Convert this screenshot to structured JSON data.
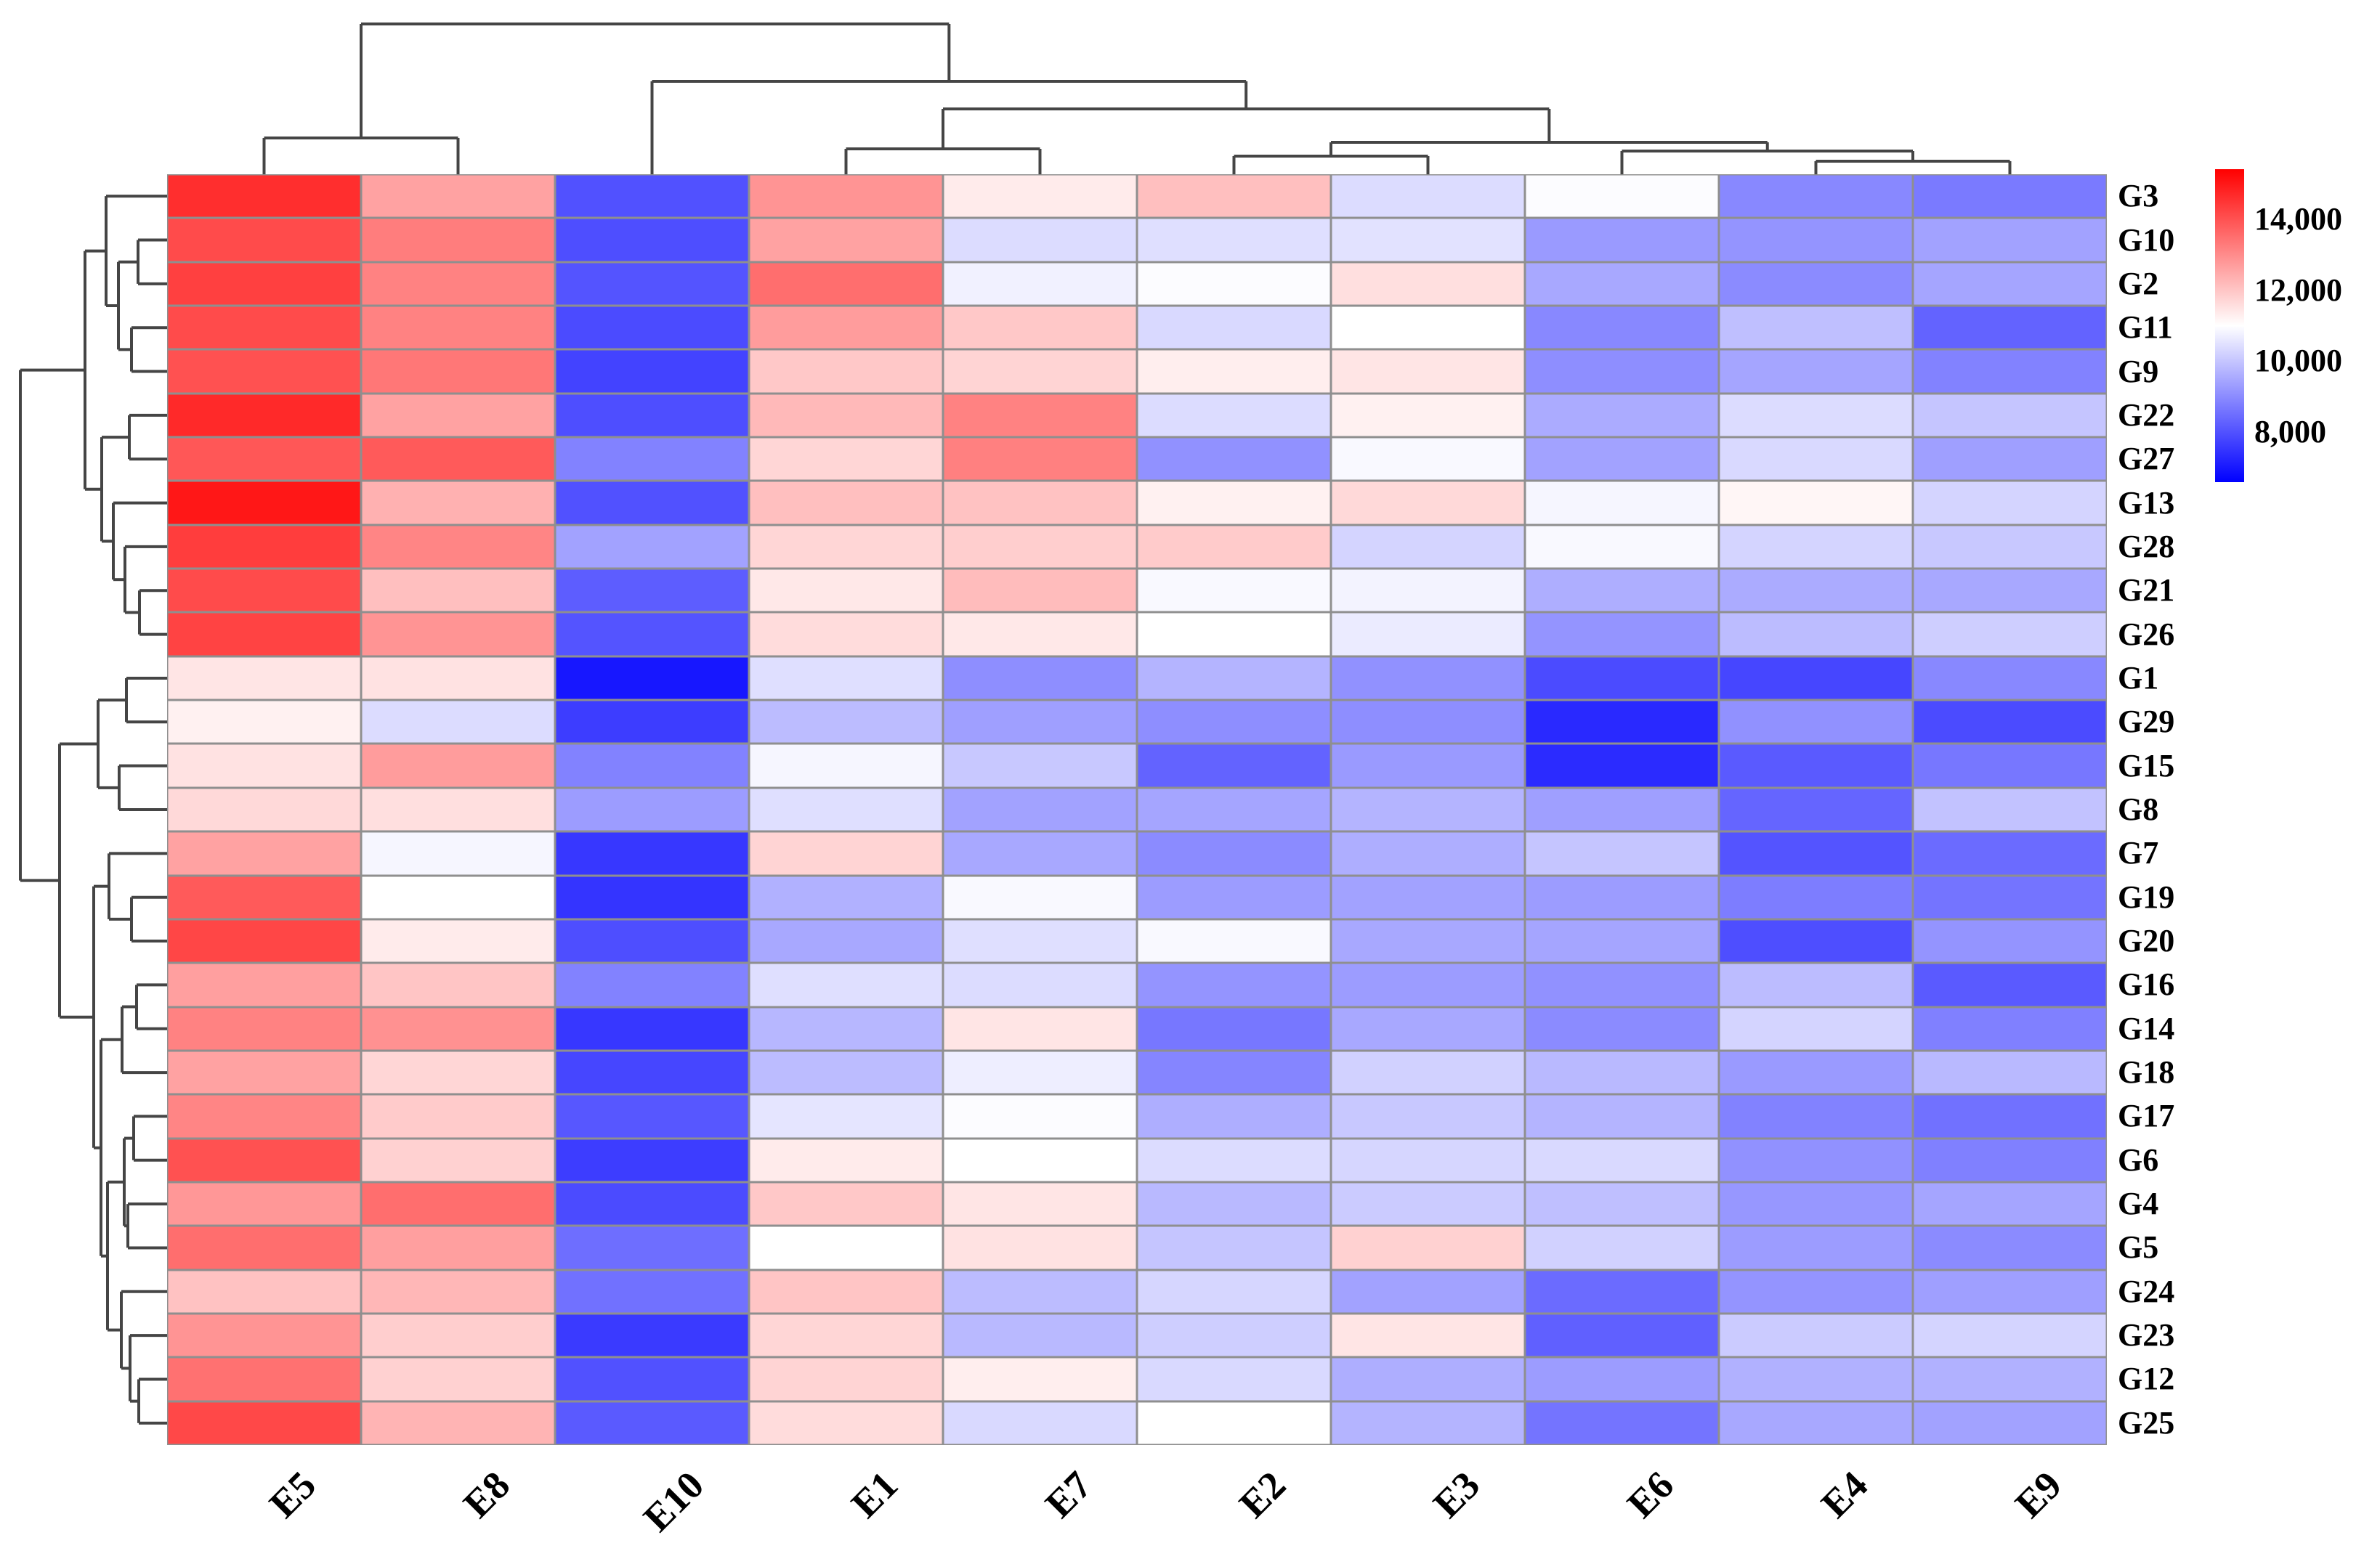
{
  "chart_data": {
    "type": "heatmap",
    "title": "",
    "legend_position": "right",
    "grid": true,
    "columns": [
      "E5",
      "E8",
      "E10",
      "E1",
      "E7",
      "E2",
      "E3",
      "E6",
      "E4",
      "E9"
    ],
    "rows": [
      "G3",
      "G10",
      "G2",
      "G11",
      "G9",
      "G22",
      "G27",
      "G13",
      "G28",
      "G21",
      "G26",
      "G1",
      "G29",
      "G15",
      "G8",
      "G7",
      "G19",
      "G20",
      "G16",
      "G14",
      "G18",
      "G17",
      "G6",
      "G4",
      "G5",
      "G24",
      "G23",
      "G12",
      "G25"
    ],
    "values": [
      [
        14600,
        12600,
        8000,
        12850,
        11350,
        12100,
        10400,
        10950,
        8950,
        8700
      ],
      [
        14100,
        13250,
        7950,
        12600,
        10400,
        10450,
        10500,
        9250,
        9150,
        9400
      ],
      [
        14300,
        13150,
        8050,
        13500,
        10750,
        10950,
        11550,
        9500,
        9000,
        9450
      ],
      [
        14100,
        13150,
        7900,
        12700,
        11950,
        10350,
        11000,
        8950,
        9900,
        8300
      ],
      [
        14000,
        13350,
        7750,
        11950,
        11750,
        11300,
        11450,
        9050,
        9450,
        8850
      ],
      [
        14700,
        12600,
        7950,
        12200,
        13150,
        10400,
        11250,
        9550,
        10400,
        10000
      ],
      [
        13900,
        13850,
        8850,
        11700,
        13200,
        9100,
        10900,
        9400,
        10350,
        9350
      ],
      [
        15000,
        12350,
        8000,
        12100,
        12050,
        11250,
        11650,
        10850,
        11150,
        10250
      ],
      [
        14350,
        13100,
        9400,
        11700,
        11850,
        11900,
        10250,
        10900,
        10250,
        10050
      ],
      [
        14100,
        12100,
        8200,
        11400,
        12150,
        10900,
        10800,
        9600,
        9550,
        9500
      ],
      [
        14250,
        12850,
        8050,
        11600,
        11400,
        11000,
        10650,
        9150,
        9850,
        10150
      ],
      [
        11450,
        11500,
        7000,
        10450,
        9050,
        9700,
        9100,
        7900,
        7800,
        8950
      ],
      [
        11250,
        10400,
        7650,
        9850,
        9350,
        9050,
        9050,
        7300,
        9100,
        7900
      ],
      [
        11500,
        12700,
        8850,
        10850,
        10050,
        8300,
        9250,
        7350,
        8150,
        8650
      ],
      [
        11650,
        11550,
        9300,
        10450,
        9400,
        9450,
        9700,
        9350,
        8350,
        9950
      ],
      [
        12600,
        10850,
        7550,
        11750,
        9500,
        9000,
        9600,
        10000,
        8050,
        8450
      ],
      [
        13850,
        11000,
        7500,
        9650,
        10900,
        9300,
        9400,
        9300,
        8750,
        8600
      ],
      [
        14200,
        11350,
        7950,
        9500,
        10450,
        10900,
        9500,
        9450,
        7950,
        9150
      ],
      [
        12650,
        12000,
        8850,
        10450,
        10400,
        9150,
        9300,
        9100,
        9850,
        8150
      ],
      [
        13150,
        12900,
        7550,
        9750,
        11450,
        8650,
        9500,
        9000,
        10250,
        8800
      ],
      [
        12600,
        11700,
        7800,
        9850,
        10700,
        8900,
        10200,
        9800,
        9250,
        9800
      ],
      [
        13100,
        11900,
        8100,
        10550,
        10950,
        9600,
        10050,
        9700,
        8850,
        8550
      ],
      [
        14000,
        11800,
        7650,
        11350,
        11000,
        10400,
        10300,
        10350,
        9100,
        8800
      ],
      [
        12800,
        13500,
        7900,
        11950,
        11450,
        9800,
        10100,
        9900,
        9200,
        9450
      ],
      [
        13500,
        12650,
        8500,
        11000,
        11500,
        10000,
        11800,
        10200,
        9300,
        9000
      ],
      [
        12050,
        12250,
        8550,
        12000,
        9850,
        10300,
        9400,
        8450,
        9150,
        9350
      ],
      [
        12850,
        11850,
        7600,
        11700,
        9800,
        10150,
        11450,
        8250,
        10100,
        10250
      ],
      [
        13450,
        11800,
        8000,
        11750,
        11300,
        10350,
        9600,
        9300,
        9650,
        9650
      ],
      [
        14150,
        12300,
        8150,
        11600,
        10350,
        11000,
        9700,
        8600,
        9500,
        9400
      ]
    ],
    "colormap": {
      "min": 6600,
      "mid": 11000,
      "max": 15400,
      "min_color": "#0000FF",
      "mid_color": "#FFFFFF",
      "max_color": "#FF0000"
    },
    "colorbar_ticks": [
      {
        "label": "14,000",
        "value": 14000
      },
      {
        "label": "12,000",
        "value": 12000
      },
      {
        "label": "10,000",
        "value": 10000
      },
      {
        "label": "8,000",
        "value": 8000
      }
    ],
    "col_dendrogram": {
      "pos": 33,
      "children": [
        {
          "pos": 190,
          "children": [
            {
              "leaf": "E5"
            },
            {
              "leaf": "E8"
            }
          ]
        },
        {
          "pos": 112,
          "children": [
            {
              "leaf": "E10"
            },
            {
              "pos": 150,
              "children": [
                {
                  "pos": 205,
                  "children": [
                    {
                      "leaf": "E1"
                    },
                    {
                      "leaf": "E7"
                    }
                  ]
                },
                {
                  "pos": 196,
                  "children": [
                    {
                      "pos": 215,
                      "children": [
                        {
                          "leaf": "E2"
                        },
                        {
                          "leaf": "E3"
                        }
                      ]
                    },
                    {
                      "pos": 208,
                      "children": [
                        {
                          "leaf": "E6"
                        },
                        {
                          "pos": 222,
                          "children": [
                            {
                              "leaf": "E4"
                            },
                            {
                              "leaf": "E9"
                            }
                          ]
                        }
                      ]
                    }
                  ]
                }
              ]
            }
          ]
        }
      ]
    },
    "row_dendrogram": {
      "pos": 28,
      "children": [
        {
          "pos": 117,
          "children": [
            {
              "pos": 146,
              "children": [
                {
                  "leaf": "G3"
                },
                {
                  "pos": 163,
                  "children": [
                    {
                      "pos": 190,
                      "children": [
                        {
                          "leaf": "G10"
                        },
                        {
                          "leaf": "G2"
                        }
                      ]
                    },
                    {
                      "pos": 181,
                      "children": [
                        {
                          "leaf": "G11"
                        },
                        {
                          "leaf": "G9"
                        }
                      ]
                    }
                  ]
                }
              ]
            },
            {
              "pos": 140,
              "children": [
                {
                  "pos": 178,
                  "children": [
                    {
                      "leaf": "G22"
                    },
                    {
                      "leaf": "G27"
                    }
                  ]
                },
                {
                  "pos": 156,
                  "children": [
                    {
                      "leaf": "G13"
                    },
                    {
                      "pos": 172,
                      "children": [
                        {
                          "leaf": "G28"
                        },
                        {
                          "pos": 192,
                          "children": [
                            {
                              "leaf": "G21"
                            },
                            {
                              "leaf": "G26"
                            }
                          ]
                        }
                      ]
                    }
                  ]
                }
              ]
            }
          ]
        },
        {
          "pos": 82,
          "children": [
            {
              "pos": 135,
              "children": [
                {
                  "pos": 174,
                  "children": [
                    {
                      "leaf": "G1"
                    },
                    {
                      "leaf": "G29"
                    }
                  ]
                },
                {
                  "pos": 164,
                  "children": [
                    {
                      "leaf": "G15"
                    },
                    {
                      "leaf": "G8"
                    }
                  ]
                }
              ]
            },
            {
              "pos": 129,
              "children": [
                {
                  "pos": 150,
                  "children": [
                    {
                      "leaf": "G7"
                    },
                    {
                      "pos": 181,
                      "children": [
                        {
                          "leaf": "G19"
                        },
                        {
                          "leaf": "G20"
                        }
                      ]
                    }
                  ]
                },
                {
                  "pos": 139,
                  "children": [
                    {
                      "pos": 168,
                      "children": [
                        {
                          "pos": 188,
                          "children": [
                            {
                              "leaf": "G16"
                            },
                            {
                              "leaf": "G14"
                            }
                          ]
                        },
                        {
                          "leaf": "G18"
                        }
                      ]
                    },
                    {
                      "pos": 148,
                      "children": [
                        {
                          "pos": 171,
                          "children": [
                            {
                              "pos": 184,
                              "children": [
                                {
                                  "leaf": "G17"
                                },
                                {
                                  "leaf": "G6"
                                }
                              ]
                            },
                            {
                              "pos": 176,
                              "children": [
                                {
                                  "leaf": "G4"
                                },
                                {
                                  "leaf": "G5"
                                }
                              ]
                            }
                          ]
                        },
                        {
                          "pos": 167,
                          "children": [
                            {
                              "leaf": "G24"
                            },
                            {
                              "pos": 179,
                              "children": [
                                {
                                  "leaf": "G23"
                                },
                                {
                                  "pos": 191,
                                  "children": [
                                    {
                                      "leaf": "G12"
                                    },
                                    {
                                      "leaf": "G25"
                                    }
                                  ]
                                }
                              ]
                            }
                          ]
                        }
                      ]
                    }
                  ]
                }
              ]
            }
          ]
        }
      ]
    }
  }
}
